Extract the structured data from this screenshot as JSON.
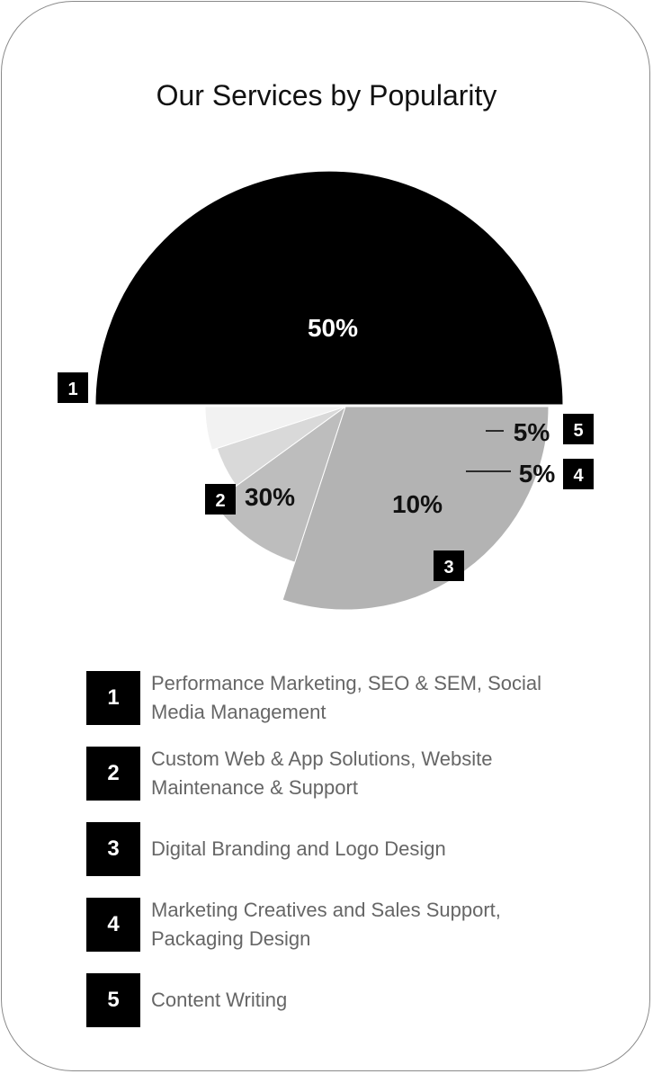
{
  "chart_data": {
    "type": "pie",
    "title": "Our Services by Popularity",
    "slices": [
      {
        "id": "1",
        "label": "Performance Marketing,  SEO & SEM, Social Media Management",
        "value": 50,
        "display": "50%",
        "color": "#000000"
      },
      {
        "id": "2",
        "label": "Custom Web & App Solutions, Website Maintenance & Support",
        "value": 30,
        "display": "30%",
        "color": "#b3b3b3"
      },
      {
        "id": "3",
        "label": "Digital Branding and Logo Design",
        "value": 10,
        "display": "10%",
        "color": "#bdbdbd"
      },
      {
        "id": "4",
        "label": "Marketing Creatives and Sales Support, Packaging Design",
        "value": 5,
        "display": "5%",
        "color": "#d9d9d9"
      },
      {
        "id": "5",
        "label": "Content Writing",
        "value": 5,
        "display": "5%",
        "color": "#f2f2f2"
      }
    ]
  }
}
